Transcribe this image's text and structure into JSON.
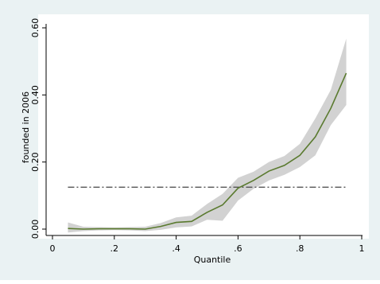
{
  "chart_data": {
    "type": "line",
    "title": "",
    "xlabel": "Quantile",
    "ylabel": "founded in 2006",
    "xlim": [
      0,
      1
    ],
    "ylim": [
      0,
      0.6
    ],
    "grid": false,
    "x_ticks": [
      {
        "value": 0,
        "label": "0"
      },
      {
        "value": 0.2,
        "label": ".2"
      },
      {
        "value": 0.4,
        "label": ".4"
      },
      {
        "value": 0.6,
        "label": ".6"
      },
      {
        "value": 0.8,
        "label": ".8"
      },
      {
        "value": 1,
        "label": "1"
      }
    ],
    "y_ticks": [
      {
        "value": 0,
        "label": "0.00"
      },
      {
        "value": 0.2,
        "label": "0.20"
      },
      {
        "value": 0.4,
        "label": "0.40"
      },
      {
        "value": 0.6,
        "label": "0.60"
      }
    ],
    "x": [
      0.05,
      0.1,
      0.15,
      0.2,
      0.25,
      0.3,
      0.35,
      0.4,
      0.45,
      0.5,
      0.55,
      0.6,
      0.65,
      0.7,
      0.75,
      0.8,
      0.85,
      0.9,
      0.95
    ],
    "series": [
      {
        "kind": "line",
        "color": "#5a7a2f",
        "values": [
          0.002,
          0.0,
          0.001,
          0.001,
          0.001,
          0.0,
          0.008,
          0.02,
          0.023,
          0.05,
          0.072,
          0.122,
          0.145,
          0.173,
          0.19,
          0.22,
          0.275,
          0.36,
          0.465
        ]
      },
      {
        "kind": "confidence-band",
        "color": "#d2d2d2",
        "lower": [
          -0.01,
          -0.006,
          -0.004,
          -0.003,
          -0.004,
          -0.006,
          -0.002,
          0.005,
          0.008,
          0.028,
          0.025,
          0.085,
          0.12,
          0.145,
          0.162,
          0.185,
          0.22,
          0.31,
          0.37
        ],
        "upper": [
          0.02,
          0.007,
          0.006,
          0.005,
          0.006,
          0.007,
          0.018,
          0.035,
          0.04,
          0.075,
          0.105,
          0.153,
          0.171,
          0.2,
          0.218,
          0.254,
          0.33,
          0.415,
          0.568
        ]
      },
      {
        "kind": "reference-line",
        "style": "dash-dot",
        "color": "#555555",
        "x": [
          0.05,
          0.95
        ],
        "values": [
          0.125,
          0.125
        ]
      }
    ]
  }
}
